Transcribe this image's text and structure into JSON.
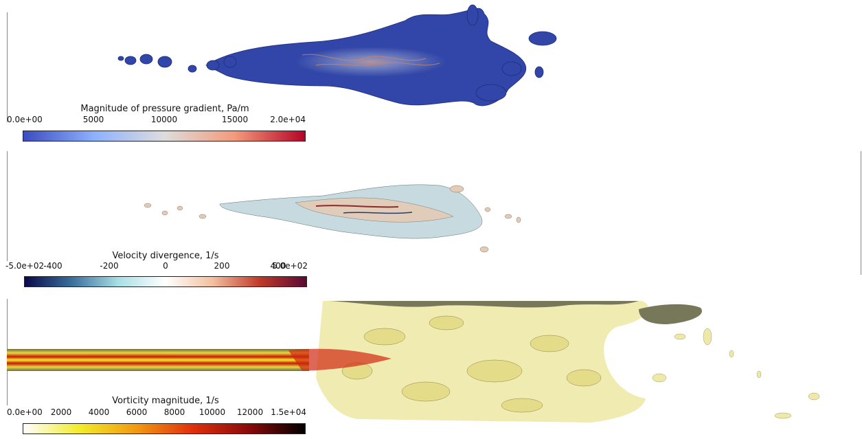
{
  "panels": [
    {
      "title": "Magnitude of pressure gradient, Pa/m",
      "ticks": [
        "0.0e+00",
        "5000",
        "10000",
        "15000",
        "2.0e+04"
      ],
      "tick_values": [
        0,
        5000,
        10000,
        15000,
        20000
      ],
      "range": [
        0,
        20000
      ],
      "colormap": [
        "#3b4cc0",
        "#8db0fe",
        "#dddddd",
        "#f49a7b",
        "#b40426"
      ]
    },
    {
      "title": "Velocity divergence, 1/s",
      "ticks": [
        "-5.0e+02",
        "-400",
        "-200",
        "0",
        "200",
        "400",
        "5.0e+02"
      ],
      "tick_values": [
        -500,
        -400,
        -200,
        0,
        200,
        400,
        500
      ],
      "range": [
        -500,
        500
      ],
      "colormap": [
        "#0a0a4a",
        "#3a6e9c",
        "#a9dfe6",
        "#ffffff",
        "#f3c0a0",
        "#c03a2a",
        "#5a0a35"
      ]
    },
    {
      "title": "Vorticity magnitude, 1/s",
      "ticks": [
        "0.0e+00",
        "2000",
        "4000",
        "6000",
        "8000",
        "10000",
        "12000",
        "1.5e+04"
      ],
      "tick_values": [
        0,
        2000,
        4000,
        6000,
        8000,
        10000,
        12000,
        15000
      ],
      "range": [
        0,
        15000
      ],
      "colormap": [
        "#ffffff",
        "#f2ec2a",
        "#f29a10",
        "#e0300c",
        "#8a0a0a",
        "#000000"
      ]
    }
  ]
}
